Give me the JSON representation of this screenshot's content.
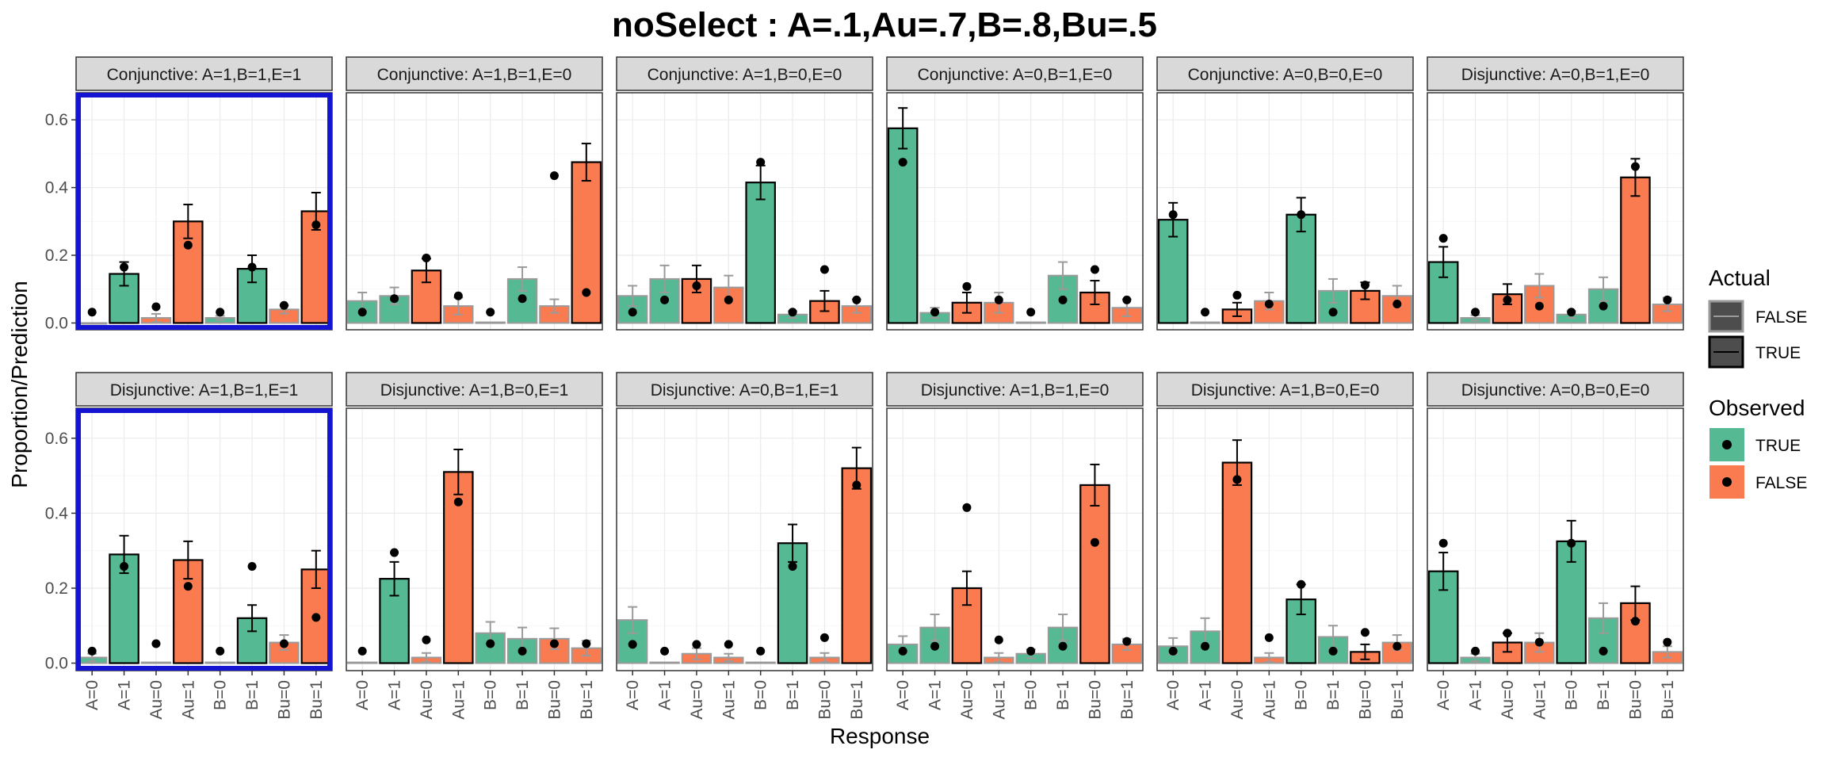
{
  "chart_data": {
    "type": "bar",
    "title": "noSelect : A=.1,Au=.7,B=.8,Bu=.5",
    "xlabel": "Response",
    "ylabel": "Proportion/Prediction",
    "ylim": [
      -0.02,
      0.68
    ],
    "yticks": [
      "0.0",
      "0.2",
      "0.4",
      "0.6"
    ],
    "categories": [
      "A=0",
      "A=1",
      "Au=0",
      "Au=1",
      "B=0",
      "B=1",
      "Bu=0",
      "Bu=1"
    ],
    "observed_by_category": [
      true,
      true,
      false,
      false,
      true,
      true,
      false,
      false
    ],
    "legend": {
      "actual_title": "Actual",
      "actual_items": [
        "FALSE",
        "TRUE"
      ],
      "observed_title": "Observed",
      "observed_items": [
        "TRUE",
        "FALSE"
      ],
      "placement": "right"
    },
    "colors": {
      "observed_true": "#55b993",
      "observed_false": "#fb7b51",
      "highlight_border": "#1414d2",
      "strip_fill": "#d9d9d9",
      "grid": "#ebebeb"
    },
    "panels": [
      {
        "title": "Conjunctive: A=1,B=1,E=1",
        "highlight": true,
        "actual": [
          false,
          true,
          false,
          true,
          false,
          true,
          false,
          true
        ],
        "values": [
          0.0,
          0.145,
          0.015,
          0.3,
          0.015,
          0.16,
          0.04,
          0.33
        ],
        "errors": [
          0.0,
          0.035,
          0.012,
          0.05,
          0.006,
          0.04,
          0.012,
          0.055
        ],
        "predictions": [
          0.032,
          0.165,
          0.048,
          0.23,
          0.032,
          0.165,
          0.052,
          0.29
        ]
      },
      {
        "title": "Conjunctive: A=1,B=1,E=0",
        "highlight": false,
        "actual": [
          false,
          false,
          true,
          false,
          false,
          false,
          false,
          true
        ],
        "values": [
          0.065,
          0.08,
          0.155,
          0.05,
          0.002,
          0.13,
          0.05,
          0.475
        ],
        "errors": [
          0.025,
          0.025,
          0.035,
          0.025,
          0.003,
          0.035,
          0.02,
          0.055
        ],
        "predictions": [
          0.032,
          0.072,
          0.192,
          0.08,
          0.032,
          0.072,
          0.435,
          0.09
        ]
      },
      {
        "title": "Conjunctive: A=1,B=0,E=0",
        "highlight": false,
        "actual": [
          false,
          false,
          true,
          false,
          true,
          false,
          true,
          false
        ],
        "values": [
          0.08,
          0.13,
          0.13,
          0.105,
          0.415,
          0.025,
          0.065,
          0.05
        ],
        "errors": [
          0.03,
          0.04,
          0.04,
          0.035,
          0.05,
          0.01,
          0.03,
          0.02
        ],
        "predictions": [
          0.032,
          0.068,
          0.11,
          0.068,
          0.475,
          0.032,
          0.158,
          0.068
        ]
      },
      {
        "title": "Conjunctive: A=0,B=1,E=0",
        "highlight": false,
        "actual": [
          true,
          false,
          true,
          false,
          false,
          false,
          true,
          false
        ],
        "values": [
          0.575,
          0.03,
          0.06,
          0.06,
          0.002,
          0.14,
          0.09,
          0.045
        ],
        "errors": [
          0.06,
          0.015,
          0.03,
          0.03,
          0.003,
          0.04,
          0.035,
          0.025
        ],
        "predictions": [
          0.475,
          0.032,
          0.108,
          0.068,
          0.032,
          0.068,
          0.158,
          0.068
        ]
      },
      {
        "title": "Conjunctive: A=0,B=0,E=0",
        "highlight": false,
        "actual": [
          true,
          false,
          true,
          false,
          true,
          false,
          true,
          false
        ],
        "values": [
          0.305,
          0.002,
          0.04,
          0.065,
          0.32,
          0.095,
          0.095,
          0.08
        ],
        "errors": [
          0.05,
          0.003,
          0.02,
          0.025,
          0.05,
          0.035,
          0.025,
          0.03
        ],
        "predictions": [
          0.32,
          0.032,
          0.082,
          0.056,
          0.32,
          0.032,
          0.112,
          0.056
        ]
      },
      {
        "title": "Disjunctive: A=0,B=1,E=0",
        "highlight": false,
        "actual": [
          true,
          false,
          true,
          false,
          false,
          false,
          true,
          false
        ],
        "values": [
          0.18,
          0.015,
          0.085,
          0.11,
          0.025,
          0.1,
          0.43,
          0.055
        ],
        "errors": [
          0.045,
          0.008,
          0.03,
          0.035,
          0.01,
          0.035,
          0.055,
          0.02
        ],
        "predictions": [
          0.25,
          0.032,
          0.068,
          0.05,
          0.032,
          0.05,
          0.462,
          0.068
        ]
      },
      {
        "title": "Disjunctive: A=1,B=1,E=1",
        "highlight": true,
        "actual": [
          false,
          true,
          false,
          true,
          false,
          true,
          false,
          true
        ],
        "values": [
          0.015,
          0.29,
          0.002,
          0.275,
          0.002,
          0.12,
          0.055,
          0.25
        ],
        "errors": [
          0.01,
          0.05,
          0.002,
          0.05,
          0.002,
          0.035,
          0.02,
          0.05
        ],
        "predictions": [
          0.032,
          0.258,
          0.052,
          0.205,
          0.032,
          0.258,
          0.052,
          0.122
        ]
      },
      {
        "title": "Disjunctive: A=1,B=0,E=1",
        "highlight": false,
        "actual": [
          false,
          true,
          false,
          true,
          false,
          false,
          false,
          false
        ],
        "values": [
          0.002,
          0.225,
          0.015,
          0.51,
          0.08,
          0.065,
          0.065,
          0.04
        ],
        "errors": [
          0.002,
          0.045,
          0.012,
          0.06,
          0.03,
          0.03,
          0.028,
          0.02
        ],
        "predictions": [
          0.032,
          0.295,
          0.062,
          0.43,
          0.052,
          0.032,
          0.052,
          0.052
        ]
      },
      {
        "title": "Disjunctive: A=0,B=1,E=1",
        "highlight": false,
        "actual": [
          false,
          false,
          false,
          false,
          false,
          true,
          false,
          true
        ],
        "values": [
          0.115,
          0.002,
          0.025,
          0.015,
          0.002,
          0.32,
          0.015,
          0.52
        ],
        "errors": [
          0.035,
          0.002,
          0.015,
          0.01,
          0.002,
          0.05,
          0.012,
          0.055
        ],
        "predictions": [
          0.05,
          0.032,
          0.05,
          0.05,
          0.032,
          0.258,
          0.068,
          0.475
        ]
      },
      {
        "title": "Disjunctive: A=1,B=1,E=0",
        "highlight": false,
        "actual": [
          false,
          false,
          true,
          false,
          false,
          false,
          true,
          false
        ],
        "values": [
          0.05,
          0.095,
          0.2,
          0.015,
          0.025,
          0.095,
          0.475,
          0.05
        ],
        "errors": [
          0.022,
          0.035,
          0.045,
          0.012,
          0.012,
          0.035,
          0.055,
          0.015
        ],
        "predictions": [
          0.032,
          0.045,
          0.415,
          0.062,
          0.032,
          0.045,
          0.322,
          0.058
        ]
      },
      {
        "title": "Disjunctive: A=1,B=0,E=0",
        "highlight": false,
        "actual": [
          false,
          false,
          true,
          false,
          true,
          false,
          true,
          false
        ],
        "values": [
          0.045,
          0.085,
          0.535,
          0.015,
          0.17,
          0.07,
          0.03,
          0.055
        ],
        "errors": [
          0.022,
          0.035,
          0.06,
          0.012,
          0.04,
          0.03,
          0.02,
          0.02
        ],
        "predictions": [
          0.032,
          0.045,
          0.49,
          0.068,
          0.21,
          0.032,
          0.082,
          0.045
        ]
      },
      {
        "title": "Disjunctive: A=0,B=0,E=0",
        "highlight": false,
        "actual": [
          true,
          false,
          true,
          false,
          true,
          false,
          true,
          false
        ],
        "values": [
          0.245,
          0.015,
          0.055,
          0.055,
          0.325,
          0.12,
          0.16,
          0.03
        ],
        "errors": [
          0.05,
          0.01,
          0.025,
          0.025,
          0.055,
          0.04,
          0.045,
          0.015
        ],
        "predictions": [
          0.32,
          0.032,
          0.08,
          0.056,
          0.32,
          0.032,
          0.112,
          0.056
        ]
      }
    ]
  }
}
